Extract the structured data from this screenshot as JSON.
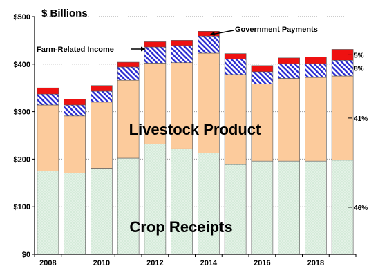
{
  "chart_data": {
    "type": "bar",
    "stacked": true,
    "unit_label": "$ Billions",
    "title": "",
    "xlabel": "",
    "ylabel": "",
    "ylim": [
      0,
      500
    ],
    "yticks": [
      0,
      100,
      200,
      300,
      400,
      500
    ],
    "ytick_labels": [
      "$0",
      "$100",
      "$200",
      "$300",
      "$400",
      "$500"
    ],
    "grid": "horizontal dotted",
    "categories": [
      "2008",
      "2009",
      "2010",
      "2011",
      "2012",
      "2013",
      "2014",
      "2015",
      "2016",
      "2017",
      "2018",
      "2019"
    ],
    "xtick_labels": [
      "2008",
      "",
      "2010",
      "",
      "2012",
      "",
      "2014",
      "",
      "2016",
      "",
      "2018",
      ""
    ],
    "series": [
      {
        "key": "crop",
        "color": "#e3f2e6",
        "pattern": "dots",
        "values": [
          175,
          171,
          181,
          202,
          232,
          222,
          213,
          189,
          196,
          196,
          196,
          198
        ]
      },
      {
        "key": "livestock",
        "color": "#fccb9c",
        "pattern": "solid",
        "values": [
          139,
          120,
          139,
          164,
          170,
          181,
          210,
          189,
          162,
          174,
          176,
          177
        ]
      },
      {
        "key": "farm_related",
        "color": "#2a2ad0",
        "pattern": "hatch",
        "values": [
          23,
          23,
          23,
          28,
          34,
          36,
          36,
          33,
          26,
          31,
          29,
          33
        ]
      },
      {
        "key": "government",
        "color": "#ee1111",
        "pattern": "solid",
        "values": [
          13,
          12,
          12,
          10,
          11,
          11,
          10,
          11,
          13,
          12,
          14,
          23
        ]
      }
    ],
    "share_labels": [
      {
        "series": "government",
        "text": "5%"
      },
      {
        "series": "farm_related",
        "text": "8%"
      },
      {
        "series": "livestock",
        "text": "41%"
      },
      {
        "series": "crop",
        "text": "46%"
      }
    ],
    "annotations": {
      "government": "Government Payments",
      "farm_related": "Farm-Related Income",
      "livestock": "Livestock Product",
      "crop": "Crop Receipts"
    }
  }
}
